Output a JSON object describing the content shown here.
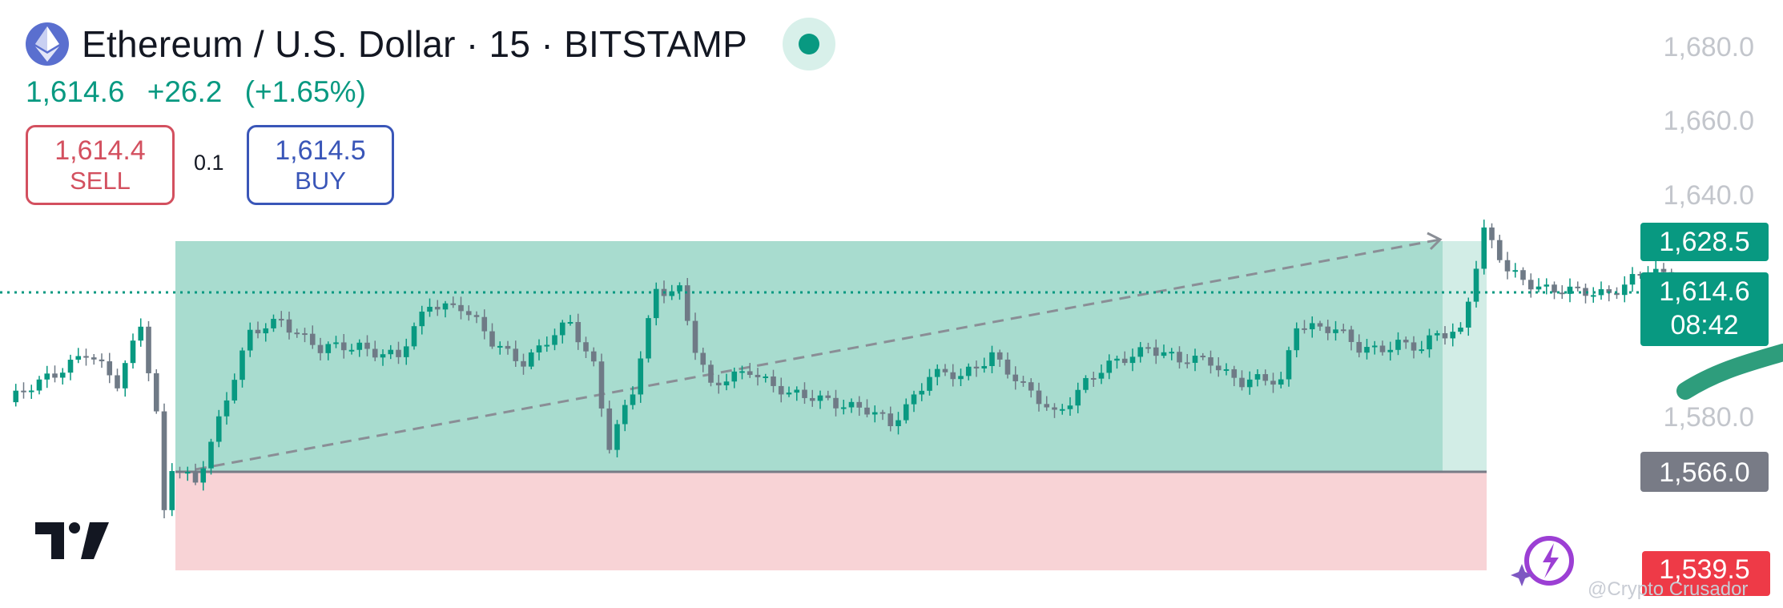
{
  "header": {
    "title": "Ethereum / U.S. Dollar · 15 · BITSTAMP",
    "last_price": "1,614.6",
    "change": "+26.2",
    "change_pct": "(+1.65%)"
  },
  "trade": {
    "sell_price": "1,614.4",
    "sell_label": "SELL",
    "spread": "0.1",
    "buy_price": "1,614.5",
    "buy_label": "BUY"
  },
  "axis_labels": {
    "p1680": "1,680.0",
    "p1660": "1,660.0",
    "p1640": "1,640.0",
    "p1580": "1,580.0",
    "target": "1,628.5",
    "last": "1,614.6",
    "countdown": "08:42",
    "entry": "1,566.0",
    "stop": "1,539.5"
  },
  "watermark": "@Crypto Crusador",
  "colors": {
    "up": "#089981",
    "candle_body": "#6f7a86",
    "profit_zone": "#a8dccf",
    "loss_zone": "#f8d3d6",
    "stop_label": "#ee3a47",
    "entry_label": "#787b86"
  },
  "chart_data": {
    "type": "candlestick",
    "symbol": "ETHUSD",
    "interval": "15",
    "exchange": "BITSTAMP",
    "y_range": [
      1537,
      1684
    ],
    "y_ticks": [
      1680,
      1660,
      1640,
      1580
    ],
    "last_price": 1614.6,
    "long_position": {
      "entry": 1566.0,
      "target": 1628.5,
      "stop": 1539.5
    },
    "anchors": [
      [
        0,
        1582
      ],
      [
        5,
        1590
      ],
      [
        10,
        1595
      ],
      [
        14,
        1588
      ],
      [
        17,
        1604
      ],
      [
        19,
        1579
      ],
      [
        20,
        1553
      ],
      [
        21,
        1565
      ],
      [
        24,
        1562
      ],
      [
        28,
        1584
      ],
      [
        31,
        1600
      ],
      [
        35,
        1605
      ],
      [
        40,
        1596
      ],
      [
        45,
        1598
      ],
      [
        50,
        1594
      ],
      [
        54,
        1609
      ],
      [
        58,
        1608
      ],
      [
        62,
        1598
      ],
      [
        66,
        1594
      ],
      [
        70,
        1600
      ],
      [
        72,
        1603
      ],
      [
        75,
        1593
      ],
      [
        77,
        1572
      ],
      [
        80,
        1585
      ],
      [
        83,
        1612
      ],
      [
        86,
        1613
      ],
      [
        88,
        1597
      ],
      [
        90,
        1586
      ],
      [
        95,
        1592
      ],
      [
        100,
        1584
      ],
      [
        105,
        1584
      ],
      [
        110,
        1580
      ],
      [
        113,
        1577
      ],
      [
        118,
        1590
      ],
      [
        122,
        1589
      ],
      [
        126,
        1596
      ],
      [
        130,
        1586
      ],
      [
        134,
        1580
      ],
      [
        138,
        1588
      ],
      [
        142,
        1593
      ],
      [
        146,
        1598
      ],
      [
        150,
        1593
      ],
      [
        154,
        1594
      ],
      [
        158,
        1588
      ],
      [
        163,
        1588
      ],
      [
        165,
        1604
      ],
      [
        170,
        1601
      ],
      [
        173,
        1597
      ],
      [
        178,
        1598
      ],
      [
        181,
        1596
      ],
      [
        183,
        1601
      ],
      [
        186,
        1602
      ],
      [
        189,
        1627
      ],
      [
        192,
        1617
      ],
      [
        198,
        1612
      ],
      [
        201,
        1611
      ],
      [
        205,
        1612
      ],
      [
        210,
        1617
      ],
      [
        215,
        1613
      ]
    ]
  }
}
